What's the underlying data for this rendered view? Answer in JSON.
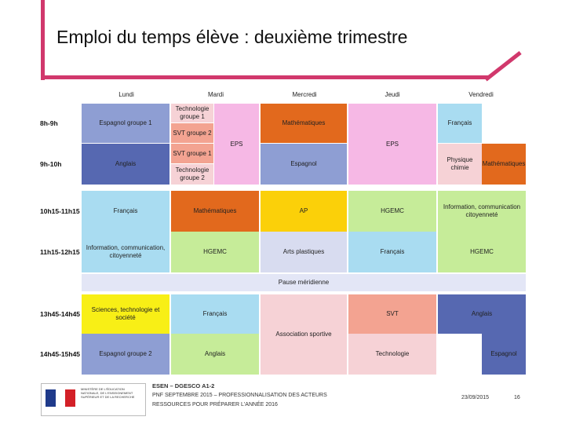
{
  "slide": {
    "title": "Emploi du temps élève : deuxième trimestre",
    "accent_color": "#d1386c"
  },
  "timetable": {
    "days": [
      "Lundi",
      "Mardi",
      "Mercredi",
      "Jeudi",
      "Vendredi"
    ],
    "slots": [
      "8h-9h",
      "9h-10h",
      "10h15-11h15",
      "11h15-12h15",
      "13h45-14h45",
      "14h45-15h45"
    ],
    "lunch": "Pause méridienne",
    "cells": [
      {
        "text": "Espagnol groupe 1",
        "color": "#8e9ed3"
      },
      {
        "text": "Anglais",
        "color": "#5668b1"
      },
      {
        "text": "Français",
        "color": "#a9dcf1"
      },
      {
        "text": "Information, communication, citoyenneté",
        "color": "#a9dcf1"
      },
      {
        "text": "Sciences, technologie et société",
        "color": "#f8ef16"
      },
      {
        "text": "Espagnol groupe 2",
        "color": "#8e9ed3"
      },
      {
        "text": "Technologie groupe 1",
        "color": "#f6d2d6"
      },
      {
        "text": "SVT groupe 2",
        "color": "#f3a391"
      },
      {
        "text": "SVT groupe 1",
        "color": "#f3a391"
      },
      {
        "text": "Technologie groupe 2",
        "color": "#f6d2d6"
      },
      {
        "text": "EPS",
        "color": "#f6b8e5"
      },
      {
        "text": "Mathématiques",
        "color": "#e2691d"
      },
      {
        "text": "HGEMC",
        "color": "#c6ec99"
      },
      {
        "text": "Français",
        "color": "#a9dcf1"
      },
      {
        "text": "Anglais",
        "color": "#c6ec99"
      },
      {
        "text": "Mathématiques",
        "color": "#e2691d"
      },
      {
        "text": "Espagnol",
        "color": "#8e9ed3"
      },
      {
        "text": "AP",
        "color": "#fbd009"
      },
      {
        "text": "Arts plastiques",
        "color": "#d8dcf0"
      },
      {
        "text": "Association sportive",
        "color": "#f6d2d6"
      },
      {
        "text": "EPS",
        "color": "#f6b8e5"
      },
      {
        "text": "HGEMC",
        "color": "#c6ec99"
      },
      {
        "text": "Français",
        "color": "#a9dcf1"
      },
      {
        "text": "SVT",
        "color": "#f3a391"
      },
      {
        "text": "Technologie",
        "color": "#f6d2d6"
      },
      {
        "text": "Français",
        "color": "#a9dcf1"
      },
      {
        "text": "Physique chimie",
        "color": "#f6d2d6"
      },
      {
        "text": "Mathématiques",
        "color": "#e2691d"
      },
      {
        "text": "Information, communication citoyenneté",
        "color": "#c6ec99"
      },
      {
        "text": "HGEMC",
        "color": "#c6ec99"
      },
      {
        "text": "Anglais",
        "color": "#5668b1"
      },
      {
        "text": "Espagnol",
        "color": "#5668b1"
      }
    ]
  },
  "footer": {
    "logo_lines": "MINISTÈRE DE L'ÉDUCATION NATIONALE, DE L'ENSEIGNEMENT SUPÉRIEUR ET DE LA RECHERCHE",
    "line1": "ESEN – DGESCO A1-2",
    "line2": "PNF SEPTEMBRE 2015 – PROFESSIONNALISATION DES ACTEURS",
    "line3": "RESSOURCES POUR PRÉPARER L'ANNÉE 2016",
    "date": "23/09/2015",
    "page": "16"
  }
}
